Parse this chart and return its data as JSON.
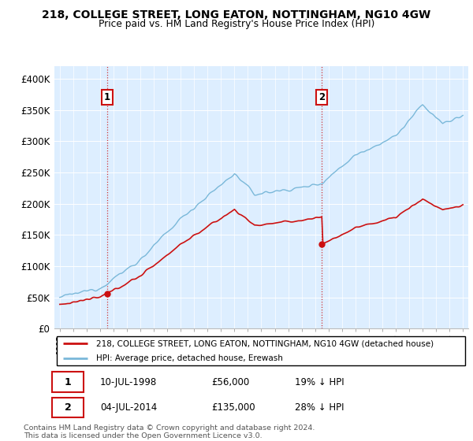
{
  "title": "218, COLLEGE STREET, LONG EATON, NOTTINGHAM, NG10 4GW",
  "subtitle": "Price paid vs. HM Land Registry's House Price Index (HPI)",
  "legend_line1": "218, COLLEGE STREET, LONG EATON, NOTTINGHAM, NG10 4GW (detached house)",
  "legend_line2": "HPI: Average price, detached house, Erewash",
  "transaction1_date": "10-JUL-1998",
  "transaction1_price": "£56,000",
  "transaction1_hpi": "19% ↓ HPI",
  "transaction2_date": "04-JUL-2014",
  "transaction2_price": "£135,000",
  "transaction2_hpi": "28% ↓ HPI",
  "footer": "Contains HM Land Registry data © Crown copyright and database right 2024.\nThis data is licensed under the Open Government Licence v3.0.",
  "hpi_color": "#7ab8d9",
  "price_color": "#cc1111",
  "vline_color": "#cc1111",
  "background_color": "#ddeeff",
  "ylim": [
    0,
    420000
  ],
  "yticks": [
    0,
    50000,
    100000,
    150000,
    200000,
    250000,
    300000,
    350000,
    400000
  ],
  "transaction1_year": 1998.53,
  "transaction2_year": 2014.51,
  "transaction1_price_val": 56000,
  "transaction2_price_val": 135000
}
